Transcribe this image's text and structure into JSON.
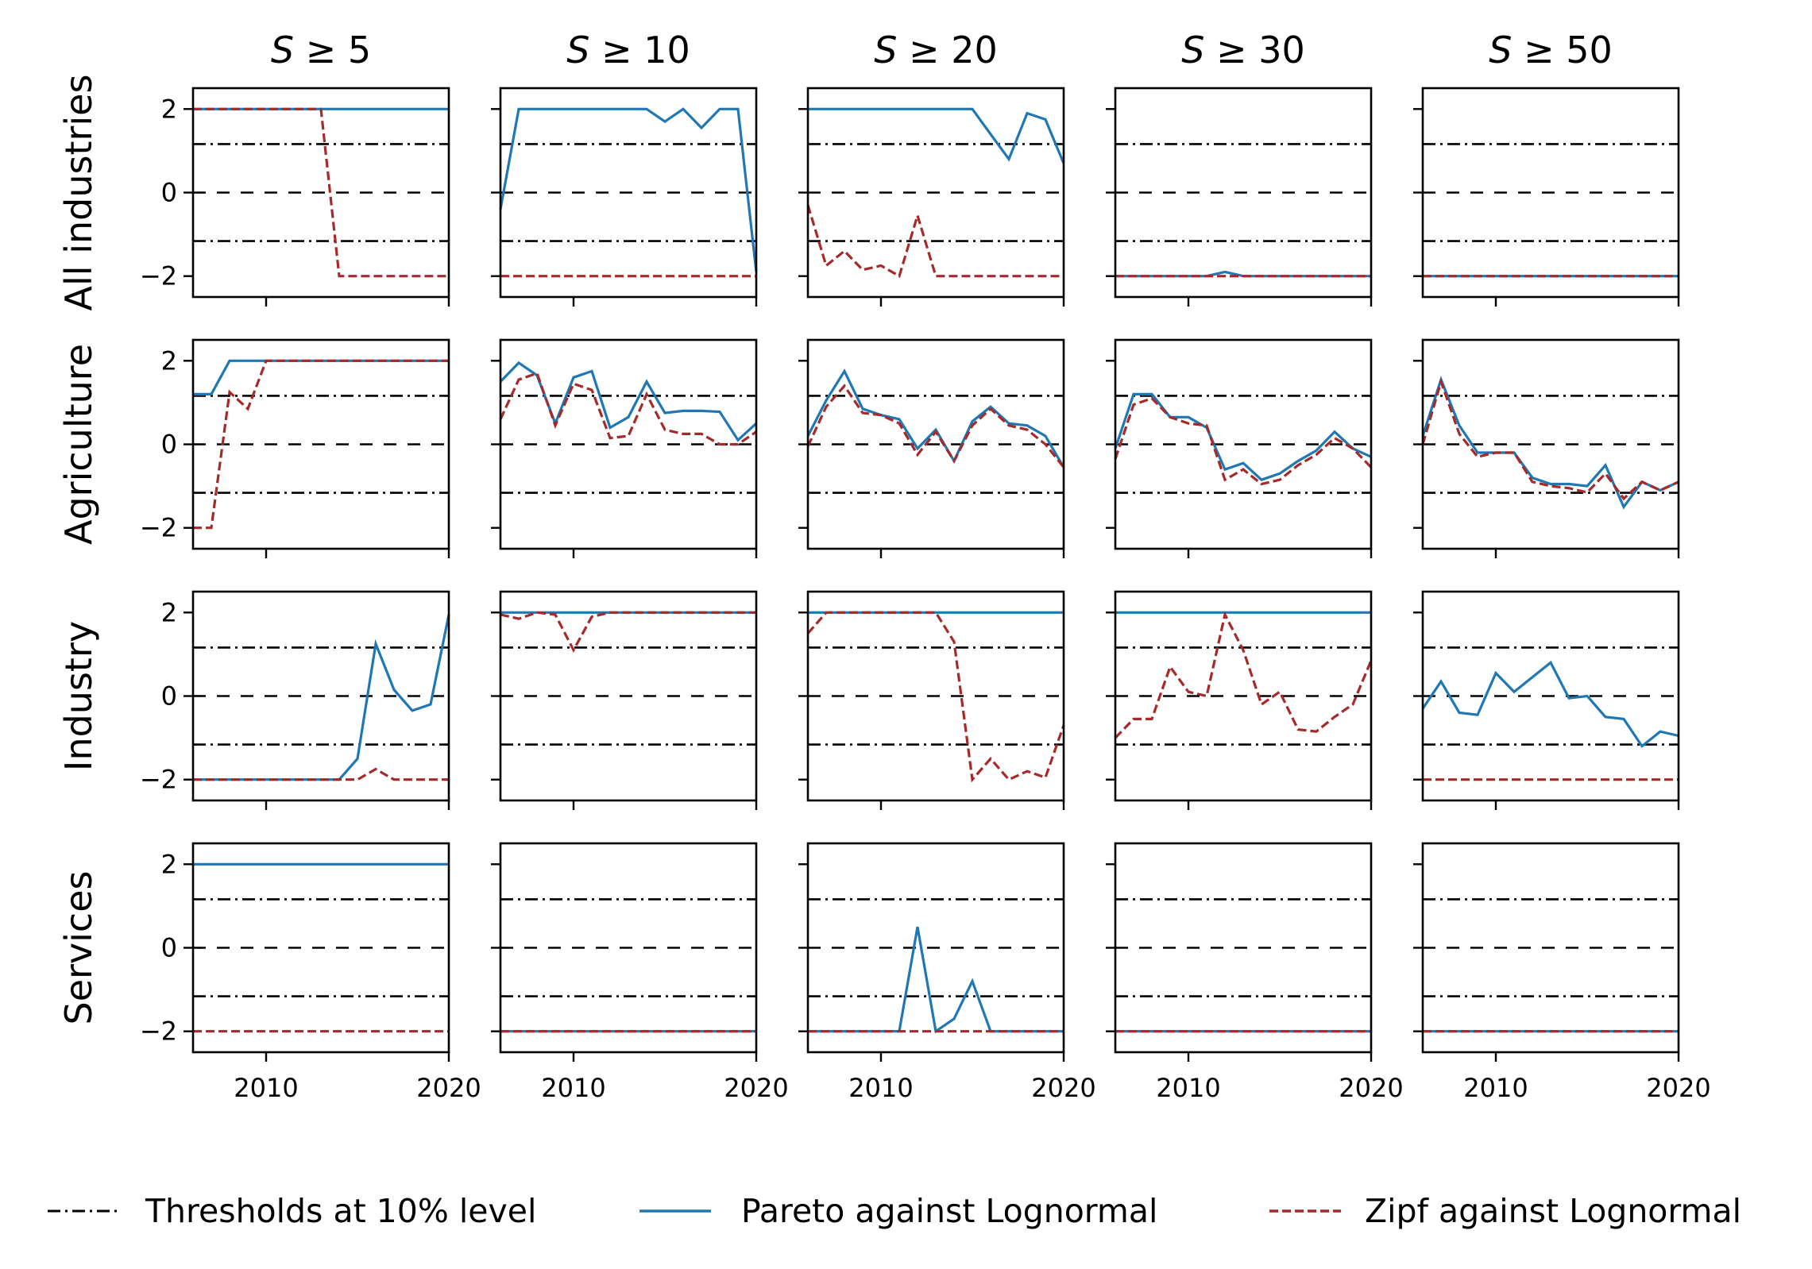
{
  "chart_data": {
    "type": "line",
    "layout": "grid 4 rows x 5 columns",
    "column_titles": [
      "S ≥ 5",
      "S ≥ 10",
      "S ≥ 20",
      "S ≥ 30",
      "S ≥ 50"
    ],
    "row_titles": [
      "All industries",
      "Agriculture",
      "Industry",
      "Services"
    ],
    "xlim": [
      2006,
      2020
    ],
    "ylim": [
      -2.5,
      2.5
    ],
    "x_ticks": [
      2010,
      2020
    ],
    "x_tick_labels": [
      "2010",
      "2020"
    ],
    "y_ticks": [
      2,
      0,
      -2
    ],
    "y_tick_labels": [
      "2",
      "0",
      "−2"
    ],
    "reference_lines": [
      {
        "name": "Thresholds at 10% level",
        "values": [
          1.16,
          -1.16
        ],
        "style": "dashdot"
      },
      {
        "name": "zero",
        "values": [
          0
        ],
        "style": "dashed"
      }
    ],
    "x": [
      2006,
      2007,
      2008,
      2009,
      2010,
      2011,
      2012,
      2013,
      2014,
      2015,
      2016,
      2017,
      2018,
      2019,
      2020
    ],
    "legend": [
      {
        "label": "Thresholds at 10% level",
        "style": "dashdot",
        "color": "#000000"
      },
      {
        "label": "Pareto against Lognormal",
        "style": "solid",
        "color": "#1f77b4"
      },
      {
        "label": "Zipf against Lognormal",
        "style": "dashed",
        "color": "#a52a2a"
      }
    ],
    "series_colors": {
      "pareto": "#1f77b4",
      "zipf": "#a52a2a"
    },
    "panels": [
      [
        {
          "pareto": [
            2,
            2,
            2,
            2,
            2,
            2,
            2,
            2,
            2,
            2,
            2,
            2,
            2,
            2,
            2
          ],
          "zipf": [
            2,
            2,
            2,
            2,
            2,
            2,
            2,
            2,
            -2,
            -2,
            -2,
            -2,
            -2,
            -2,
            -2
          ]
        },
        {
          "pareto": [
            -0.4,
            2,
            2,
            2,
            2,
            2,
            2,
            2,
            2,
            1.7,
            2,
            1.55,
            2,
            2,
            -1.9
          ],
          "zipf": [
            -2,
            -2,
            -2,
            -2,
            -2,
            -2,
            -2,
            -2,
            -2,
            -2,
            -2,
            -2,
            -2,
            -2,
            -2
          ]
        },
        {
          "pareto": [
            2,
            2,
            2,
            2,
            2,
            2,
            2,
            2,
            2,
            2,
            1.4,
            0.8,
            1.9,
            1.75,
            0.7
          ],
          "zipf": [
            -0.3,
            -1.75,
            -1.4,
            -1.85,
            -1.75,
            -2,
            -0.55,
            -2,
            -2,
            -2,
            -2,
            -2,
            -2,
            -2,
            -2
          ]
        },
        {
          "pareto": [
            -2,
            -2,
            -2,
            -2,
            -2,
            -2,
            -1.9,
            -2,
            -2,
            -2,
            -2,
            -2,
            -2,
            -2,
            -2
          ],
          "zipf": [
            -2,
            -2,
            -2,
            -2,
            -2,
            -2,
            -2,
            -2,
            -2,
            -2,
            -2,
            -2,
            -2,
            -2,
            -2
          ]
        },
        {
          "pareto": [
            -2,
            -2,
            -2,
            -2,
            -2,
            -2,
            -2,
            -2,
            -2,
            -2,
            -2,
            -2,
            -2,
            -2,
            -2
          ],
          "zipf": [
            -2,
            -2,
            -2,
            -2,
            -2,
            -2,
            -2,
            -2,
            -2,
            -2,
            -2,
            -2,
            -2,
            -2,
            -2
          ]
        }
      ],
      [
        {
          "pareto": [
            1.2,
            1.2,
            2,
            2,
            2,
            2,
            2,
            2,
            2,
            2,
            2,
            2,
            2,
            2,
            2
          ],
          "zipf": [
            -2,
            -2,
            1.25,
            0.85,
            2,
            2,
            2,
            2,
            2,
            2,
            2,
            2,
            2,
            2,
            2
          ]
        },
        {
          "pareto": [
            1.5,
            1.95,
            1.65,
            0.5,
            1.6,
            1.75,
            0.4,
            0.65,
            1.5,
            0.75,
            0.8,
            0.8,
            0.78,
            0.1,
            0.5
          ],
          "zipf": [
            0.6,
            1.55,
            1.7,
            0.45,
            1.45,
            1.3,
            0.15,
            0.2,
            1.2,
            0.35,
            0.25,
            0.25,
            0,
            0,
            0.3
          ]
        },
        {
          "pareto": [
            0.2,
            1.05,
            1.75,
            0.85,
            0.7,
            0.6,
            -0.1,
            0.35,
            -0.4,
            0.55,
            0.9,
            0.5,
            0.45,
            0.2,
            -0.55
          ],
          "zipf": [
            -0.05,
            0.9,
            1.4,
            0.75,
            0.7,
            0.5,
            -0.25,
            0.3,
            -0.4,
            0.45,
            0.85,
            0.45,
            0.35,
            0,
            -0.55
          ]
        },
        {
          "pareto": [
            -0.1,
            1.2,
            1.2,
            0.65,
            0.65,
            0.4,
            -0.6,
            -0.45,
            -0.85,
            -0.7,
            -0.4,
            -0.15,
            0.3,
            -0.1,
            -0.3
          ],
          "zipf": [
            -0.35,
            0.95,
            1.1,
            0.65,
            0.5,
            0.45,
            -0.85,
            -0.6,
            -0.95,
            -0.85,
            -0.5,
            -0.25,
            0.15,
            -0.1,
            -0.55
          ]
        },
        {
          "pareto": [
            0.2,
            1.55,
            0.45,
            -0.2,
            -0.2,
            -0.2,
            -0.8,
            -0.95,
            -0.95,
            -1.0,
            -0.5,
            -1.5,
            -0.9,
            -1.1,
            -0.9
          ],
          "zipf": [
            0,
            1.5,
            0.25,
            -0.3,
            -0.2,
            -0.2,
            -0.9,
            -1.0,
            -1.05,
            -1.15,
            -0.7,
            -1.3,
            -0.9,
            -1.1,
            -0.9
          ]
        }
      ],
      [
        {
          "pareto": [
            -2,
            -2,
            -2,
            -2,
            -2,
            -2,
            -2,
            -2,
            -2,
            -1.5,
            1.25,
            0.15,
            -0.35,
            -0.2,
            1.95
          ],
          "zipf": [
            -2,
            -2,
            -2,
            -2,
            -2,
            -2,
            -2,
            -2,
            -2,
            -2,
            -1.75,
            -2,
            -2,
            -2,
            -2
          ]
        },
        {
          "pareto": [
            2,
            2,
            2,
            2,
            2,
            2,
            2,
            2,
            2,
            2,
            2,
            2,
            2,
            2,
            2
          ],
          "zipf": [
            1.95,
            1.85,
            2,
            1.95,
            1.1,
            1.9,
            2,
            2,
            2,
            2,
            2,
            2,
            2,
            2,
            2
          ]
        },
        {
          "pareto": [
            2,
            2,
            2,
            2,
            2,
            2,
            2,
            2,
            2,
            2,
            2,
            2,
            2,
            2,
            2
          ],
          "zipf": [
            1.5,
            2,
            2,
            2,
            2,
            2,
            2,
            2,
            1.3,
            -2,
            -1.5,
            -2,
            -1.8,
            -1.95,
            -0.7
          ]
        },
        {
          "pareto": [
            2,
            2,
            2,
            2,
            2,
            2,
            2,
            2,
            2,
            2,
            2,
            2,
            2,
            2,
            2
          ],
          "zipf": [
            -1.0,
            -0.55,
            -0.55,
            0.7,
            0.1,
            0,
            1.95,
            1.1,
            -0.2,
            0.1,
            -0.8,
            -0.85,
            -0.5,
            -0.2,
            0.85
          ]
        },
        {
          "pareto": [
            -0.3,
            0.35,
            -0.4,
            -0.45,
            0.55,
            0.1,
            0.45,
            0.8,
            -0.05,
            0,
            -0.5,
            -0.55,
            -1.2,
            -0.85,
            -0.95
          ],
          "zipf": [
            -2,
            -2,
            -2,
            -2,
            -2,
            -2,
            -2,
            -2,
            -2,
            -2,
            -2,
            -2,
            -2,
            -2,
            -2
          ]
        }
      ],
      [
        {
          "pareto": [
            2,
            2,
            2,
            2,
            2,
            2,
            2,
            2,
            2,
            2,
            2,
            2,
            2,
            2,
            2
          ],
          "zipf": [
            -2,
            -2,
            -2,
            -2,
            -2,
            -2,
            -2,
            -2,
            -2,
            -2,
            -2,
            -2,
            -2,
            -2,
            -2
          ]
        },
        {
          "pareto": [
            -2,
            -2,
            -2,
            -2,
            -2,
            -2,
            -2,
            -2,
            -2,
            -2,
            -2,
            -2,
            -2,
            -2,
            -2
          ],
          "zipf": [
            -2,
            -2,
            -2,
            -2,
            -2,
            -2,
            -2,
            -2,
            -2,
            -2,
            -2,
            -2,
            -2,
            -2,
            -2
          ]
        },
        {
          "pareto": [
            -2,
            -2,
            -2,
            -2,
            -2,
            -2,
            0.5,
            -2,
            -1.7,
            -0.8,
            -2,
            -2,
            -2,
            -2,
            -2
          ],
          "zipf": [
            -2,
            -2,
            -2,
            -2,
            -2,
            -2,
            -2,
            -2,
            -2,
            -2,
            -2,
            -2,
            -2,
            -2,
            -2
          ]
        },
        {
          "pareto": [
            -2,
            -2,
            -2,
            -2,
            -2,
            -2,
            -2,
            -2,
            -2,
            -2,
            -2,
            -2,
            -2,
            -2,
            -2
          ],
          "zipf": [
            -2,
            -2,
            -2,
            -2,
            -2,
            -2,
            -2,
            -2,
            -2,
            -2,
            -2,
            -2,
            -2,
            -2,
            -2
          ]
        },
        {
          "pareto": [
            -2,
            -2,
            -2,
            -2,
            -2,
            -2,
            -2,
            -2,
            -2,
            -2,
            -2,
            -2,
            -2,
            -2,
            -2
          ],
          "zipf": [
            -2,
            -2,
            -2,
            -2,
            -2,
            -2,
            -2,
            -2,
            -2,
            -2,
            -2,
            -2,
            -2,
            -2,
            -2
          ]
        }
      ]
    ]
  }
}
